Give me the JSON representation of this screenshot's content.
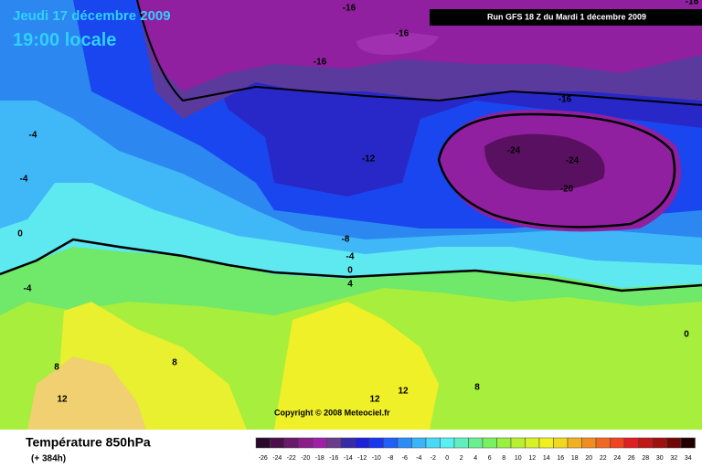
{
  "header": {
    "date": "Jeudi 17 décembre 2009",
    "time": "19:00 locale",
    "run": "Run GFS 18 Z du Mardi 1 décembre 2009"
  },
  "map": {
    "contour_labels": [
      "-16",
      "-16",
      "-16",
      "-16",
      "-16",
      "-12",
      "-24",
      "-24",
      "-20",
      "-8",
      "-4",
      "0",
      "4",
      "-4",
      "-4",
      "0",
      "-4",
      "8",
      "8",
      "12",
      "12",
      "12",
      "8",
      "0"
    ],
    "copyright": "Copyright © 2008 Meteociel.fr"
  },
  "footer": {
    "title": "Température 850hPa",
    "subtitle": "(+ 384h)"
  },
  "legend": {
    "labels": [
      "-26",
      "-24",
      "-22",
      "-20",
      "-18",
      "-16",
      "-14",
      "-12",
      "-10",
      "-8",
      "-6",
      "-4",
      "-2",
      "0",
      "2",
      "4",
      "6",
      "8",
      "10",
      "12",
      "14",
      "16",
      "18",
      "20",
      "22",
      "24",
      "26",
      "28",
      "30",
      "32",
      "34"
    ],
    "colors": [
      "#2a0a2a",
      "#4a104a",
      "#6a1a6a",
      "#8a1e8a",
      "#a020a8",
      "#6c3c8c",
      "#3a2aa8",
      "#2020d8",
      "#1838f0",
      "#2060f8",
      "#2c8cf8",
      "#38b4f8",
      "#48d8f8",
      "#58f0f0",
      "#60f0c0",
      "#68f090",
      "#78f060",
      "#98f040",
      "#b8f030",
      "#d8f028",
      "#f0f020",
      "#f0d820",
      "#f0b020",
      "#f08c20",
      "#f06820",
      "#f04420",
      "#e02020",
      "#c01818",
      "#a01010",
      "#700808",
      "#200000"
    ]
  }
}
